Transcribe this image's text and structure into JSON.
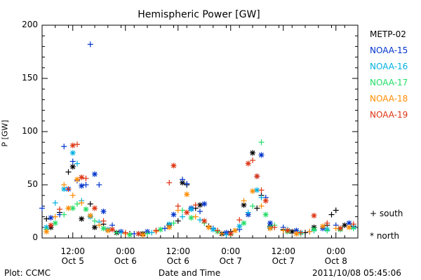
{
  "chart_data": {
    "type": "scatter",
    "title": "Hemispheric Power [GW]",
    "xlabel": "Date and Time",
    "ylabel": "P [GW]",
    "ylim": [
      0,
      200
    ],
    "y_ticks": [
      "0",
      "50",
      "100",
      "150",
      "200"
    ],
    "x_ticks": [
      {
        "time": "12:00",
        "date": "Oct 5",
        "hours": 12
      },
      {
        "time": "0:00",
        "date": "Oct 6",
        "hours": 24
      },
      {
        "time": "12:00",
        "date": "Oct 6",
        "hours": 36
      },
      {
        "time": "0:00",
        "date": "Oct 7",
        "hours": 48
      },
      {
        "time": "12:00",
        "date": "Oct 7",
        "hours": 60
      },
      {
        "time": "0:00",
        "date": "Oct 8",
        "hours": 72
      }
    ],
    "xlim_hours_from_oct5": [
      5,
      77
    ],
    "series": [
      {
        "name": "METP-02",
        "color": "#000000",
        "points": [
          [
            6,
            18,
            "s"
          ],
          [
            7,
            10,
            "n"
          ],
          [
            9,
            24,
            "s"
          ],
          [
            11,
            62,
            "s"
          ],
          [
            12,
            67,
            "n"
          ],
          [
            14,
            18,
            "n"
          ],
          [
            16,
            32,
            "s"
          ],
          [
            17,
            10,
            "n"
          ],
          [
            19,
            13,
            "s"
          ],
          [
            22,
            5,
            "n"
          ],
          [
            25,
            4,
            "s"
          ],
          [
            28,
            4,
            "n"
          ],
          [
            31,
            7,
            "s"
          ],
          [
            34,
            12,
            "n"
          ],
          [
            36,
            16,
            "s"
          ],
          [
            37,
            52,
            "n"
          ],
          [
            38,
            50,
            "s"
          ],
          [
            40,
            28,
            "s"
          ],
          [
            41,
            31,
            "n"
          ],
          [
            43,
            11,
            "s"
          ],
          [
            46,
            4,
            "n"
          ],
          [
            48,
            6,
            "s"
          ],
          [
            51,
            31,
            "n"
          ],
          [
            53,
            80,
            "n"
          ],
          [
            54,
            28,
            "s"
          ],
          [
            55,
            40,
            "s"
          ],
          [
            57,
            11,
            "n"
          ],
          [
            60,
            8,
            "s"
          ],
          [
            62,
            6,
            "n"
          ],
          [
            65,
            5,
            "s"
          ],
          [
            67,
            10,
            "n"
          ],
          [
            70,
            12,
            "s"
          ],
          [
            71,
            22,
            "s"
          ],
          [
            72,
            26,
            "s"
          ],
          [
            74,
            12,
            "n"
          ],
          [
            76,
            11,
            "s"
          ]
        ]
      },
      {
        "name": "NOAA-15",
        "color": "#0033cc",
        "points": [
          [
            5,
            28,
            "s"
          ],
          [
            7,
            19,
            "n"
          ],
          [
            9,
            22,
            "s"
          ],
          [
            10,
            86,
            "s"
          ],
          [
            11,
            46,
            "n"
          ],
          [
            12,
            72,
            "s"
          ],
          [
            13,
            54,
            "s"
          ],
          [
            14,
            49,
            "n"
          ],
          [
            15,
            50,
            "s"
          ],
          [
            16,
            182,
            "s"
          ],
          [
            17,
            60,
            "n"
          ],
          [
            18,
            50,
            "s"
          ],
          [
            19,
            25,
            "n"
          ],
          [
            21,
            12,
            "s"
          ],
          [
            23,
            6,
            "n"
          ],
          [
            26,
            4,
            "s"
          ],
          [
            29,
            6,
            "n"
          ],
          [
            33,
            9,
            "s"
          ],
          [
            35,
            22,
            "n"
          ],
          [
            37,
            55,
            "s"
          ],
          [
            38,
            51,
            "s"
          ],
          [
            39,
            28,
            "n"
          ],
          [
            41,
            25,
            "s"
          ],
          [
            42,
            32,
            "n"
          ],
          [
            44,
            9,
            "s"
          ],
          [
            47,
            5,
            "n"
          ],
          [
            50,
            8,
            "s"
          ],
          [
            52,
            22,
            "n"
          ],
          [
            54,
            58,
            "s"
          ],
          [
            55,
            78,
            "n"
          ],
          [
            56,
            38,
            "s"
          ],
          [
            57,
            14,
            "n"
          ],
          [
            60,
            10,
            "s"
          ],
          [
            63,
            7,
            "n"
          ],
          [
            66,
            6,
            "s"
          ],
          [
            69,
            9,
            "n"
          ],
          [
            72,
            12,
            "s"
          ],
          [
            75,
            14,
            "n"
          ]
        ]
      },
      {
        "name": "NOAA-16",
        "color": "#00b0e0",
        "points": [
          [
            6,
            10,
            "n"
          ],
          [
            8,
            33,
            "s"
          ],
          [
            10,
            46,
            "n"
          ],
          [
            12,
            80,
            "n"
          ],
          [
            13,
            70,
            "s"
          ],
          [
            14,
            35,
            "s"
          ],
          [
            16,
            20,
            "n"
          ],
          [
            18,
            15,
            "s"
          ],
          [
            20,
            8,
            "n"
          ],
          [
            23,
            5,
            "s"
          ],
          [
            27,
            4,
            "n"
          ],
          [
            30,
            5,
            "s"
          ],
          [
            34,
            13,
            "n"
          ],
          [
            37,
            20,
            "s"
          ],
          [
            39,
            27,
            "n"
          ],
          [
            41,
            17,
            "s"
          ],
          [
            44,
            8,
            "n"
          ],
          [
            47,
            3,
            "s"
          ],
          [
            50,
            11,
            "n"
          ],
          [
            52,
            24,
            "s"
          ],
          [
            54,
            45,
            "n"
          ],
          [
            55,
            38,
            "s"
          ],
          [
            57,
            10,
            "n"
          ],
          [
            61,
            8,
            "s"
          ],
          [
            64,
            5,
            "n"
          ],
          [
            67,
            7,
            "s"
          ],
          [
            70,
            8,
            "n"
          ],
          [
            73,
            9,
            "s"
          ],
          [
            76,
            10,
            "n"
          ]
        ]
      },
      {
        "name": "NOAA-17",
        "color": "#22dd66",
        "points": [
          [
            6,
            8,
            "s"
          ],
          [
            8,
            14,
            "n"
          ],
          [
            10,
            22,
            "s"
          ],
          [
            12,
            28,
            "n"
          ],
          [
            13,
            32,
            "s"
          ],
          [
            15,
            27,
            "n"
          ],
          [
            17,
            16,
            "s"
          ],
          [
            19,
            9,
            "n"
          ],
          [
            22,
            5,
            "s"
          ],
          [
            25,
            3,
            "n"
          ],
          [
            29,
            4,
            "s"
          ],
          [
            32,
            8,
            "n"
          ],
          [
            35,
            14,
            "s"
          ],
          [
            37,
            26,
            "s"
          ],
          [
            39,
            19,
            "n"
          ],
          [
            42,
            14,
            "s"
          ],
          [
            45,
            6,
            "n"
          ],
          [
            48,
            3,
            "s"
          ],
          [
            51,
            14,
            "n"
          ],
          [
            53,
            30,
            "s"
          ],
          [
            55,
            90,
            "s"
          ],
          [
            56,
            22,
            "n"
          ],
          [
            58,
            12,
            "s"
          ],
          [
            61,
            6,
            "n"
          ],
          [
            64,
            4,
            "s"
          ],
          [
            67,
            8,
            "n"
          ],
          [
            70,
            7,
            "s"
          ],
          [
            73,
            8,
            "n"
          ],
          [
            76,
            9,
            "s"
          ]
        ]
      },
      {
        "name": "NOAA-18",
        "color": "#ff8c00",
        "points": [
          [
            6,
            6,
            "n"
          ],
          [
            8,
            20,
            "s"
          ],
          [
            10,
            50,
            "s"
          ],
          [
            11,
            28,
            "n"
          ],
          [
            12,
            40,
            "s"
          ],
          [
            13,
            55,
            "n"
          ],
          [
            14,
            33,
            "s"
          ],
          [
            16,
            21,
            "n"
          ],
          [
            18,
            12,
            "s"
          ],
          [
            20,
            7,
            "n"
          ],
          [
            24,
            4,
            "s"
          ],
          [
            28,
            3,
            "n"
          ],
          [
            31,
            6,
            "s"
          ],
          [
            34,
            10,
            "n"
          ],
          [
            36,
            26,
            "s"
          ],
          [
            38,
            41,
            "n"
          ],
          [
            40,
            20,
            "s"
          ],
          [
            43,
            10,
            "n"
          ],
          [
            46,
            4,
            "s"
          ],
          [
            49,
            7,
            "n"
          ],
          [
            51,
            35,
            "s"
          ],
          [
            53,
            44,
            "n"
          ],
          [
            55,
            30,
            "s"
          ],
          [
            57,
            9,
            "n"
          ],
          [
            60,
            7,
            "s"
          ],
          [
            63,
            4,
            "n"
          ],
          [
            66,
            6,
            "s"
          ],
          [
            69,
            11,
            "n"
          ],
          [
            72,
            9,
            "s"
          ],
          [
            75,
            10,
            "n"
          ]
        ]
      },
      {
        "name": "NOAA-19",
        "color": "#dd3311",
        "points": [
          [
            7,
            12,
            "n"
          ],
          [
            9,
            27,
            "s"
          ],
          [
            11,
            46,
            "s"
          ],
          [
            12,
            87,
            "n"
          ],
          [
            13,
            88,
            "s"
          ],
          [
            14,
            57,
            "n"
          ],
          [
            15,
            56,
            "s"
          ],
          [
            17,
            28,
            "n"
          ],
          [
            19,
            16,
            "s"
          ],
          [
            21,
            8,
            "n"
          ],
          [
            24,
            5,
            "s"
          ],
          [
            27,
            4,
            "n"
          ],
          [
            31,
            7,
            "s"
          ],
          [
            34,
            52,
            "s"
          ],
          [
            35,
            68,
            "n"
          ],
          [
            36,
            30,
            "s"
          ],
          [
            38,
            24,
            "n"
          ],
          [
            40,
            31,
            "s"
          ],
          [
            42,
            16,
            "n"
          ],
          [
            45,
            7,
            "s"
          ],
          [
            48,
            4,
            "n"
          ],
          [
            50,
            17,
            "s"
          ],
          [
            52,
            70,
            "n"
          ],
          [
            53,
            73,
            "s"
          ],
          [
            54,
            58,
            "n"
          ],
          [
            55,
            45,
            "s"
          ],
          [
            56,
            35,
            "n"
          ],
          [
            58,
            10,
            "s"
          ],
          [
            61,
            7,
            "n"
          ],
          [
            64,
            5,
            "s"
          ],
          [
            67,
            21,
            "n"
          ],
          [
            70,
            14,
            "s"
          ],
          [
            73,
            9,
            "n"
          ],
          [
            76,
            13,
            "s"
          ]
        ]
      }
    ]
  },
  "legend": {
    "south": {
      "symbol": "+",
      "label": "south"
    },
    "north": {
      "symbol": "*",
      "label": "north"
    }
  },
  "footer": {
    "left": "Plot: CCMC",
    "right": "2011/10/08 05:45:06"
  }
}
